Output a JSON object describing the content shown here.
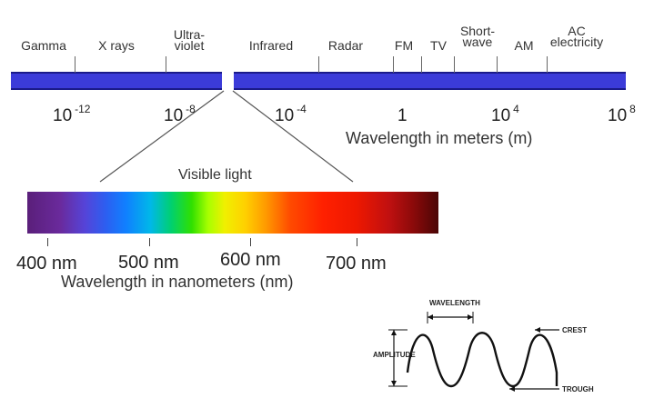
{
  "em_spectrum": {
    "bands": [
      {
        "name": "Gamma"
      },
      {
        "name": "X rays"
      },
      {
        "name": "Ultra-\nviolet"
      },
      {
        "name": "Infrared"
      },
      {
        "name": "Radar"
      },
      {
        "name": "FM"
      },
      {
        "name": "TV"
      },
      {
        "name": "Short-\nwave"
      },
      {
        "name": "AM"
      },
      {
        "name": "AC\nelectricity"
      }
    ],
    "bar_color": "#3b3bd9",
    "wavelength_labels": [
      {
        "base": "10",
        "exp": "-12"
      },
      {
        "base": "10",
        "exp": "-8"
      },
      {
        "base": "10",
        "exp": "-4"
      },
      {
        "base": "1",
        "exp": ""
      },
      {
        "base": "10",
        "exp": "4"
      },
      {
        "base": "10",
        "exp": "8"
      }
    ],
    "axis_title": "Wavelength in meters (m)"
  },
  "visible": {
    "title": "Visible light",
    "nm_labels": [
      "400 nm",
      "500 nm",
      "600 nm",
      "700 nm"
    ],
    "axis_title": "Wavelength in nanometers (nm)"
  },
  "wave": {
    "wavelength": "WAVELENGTH",
    "amplitude": "AMPLITUDE",
    "crest": "CREST",
    "trough": "TROUGH"
  }
}
